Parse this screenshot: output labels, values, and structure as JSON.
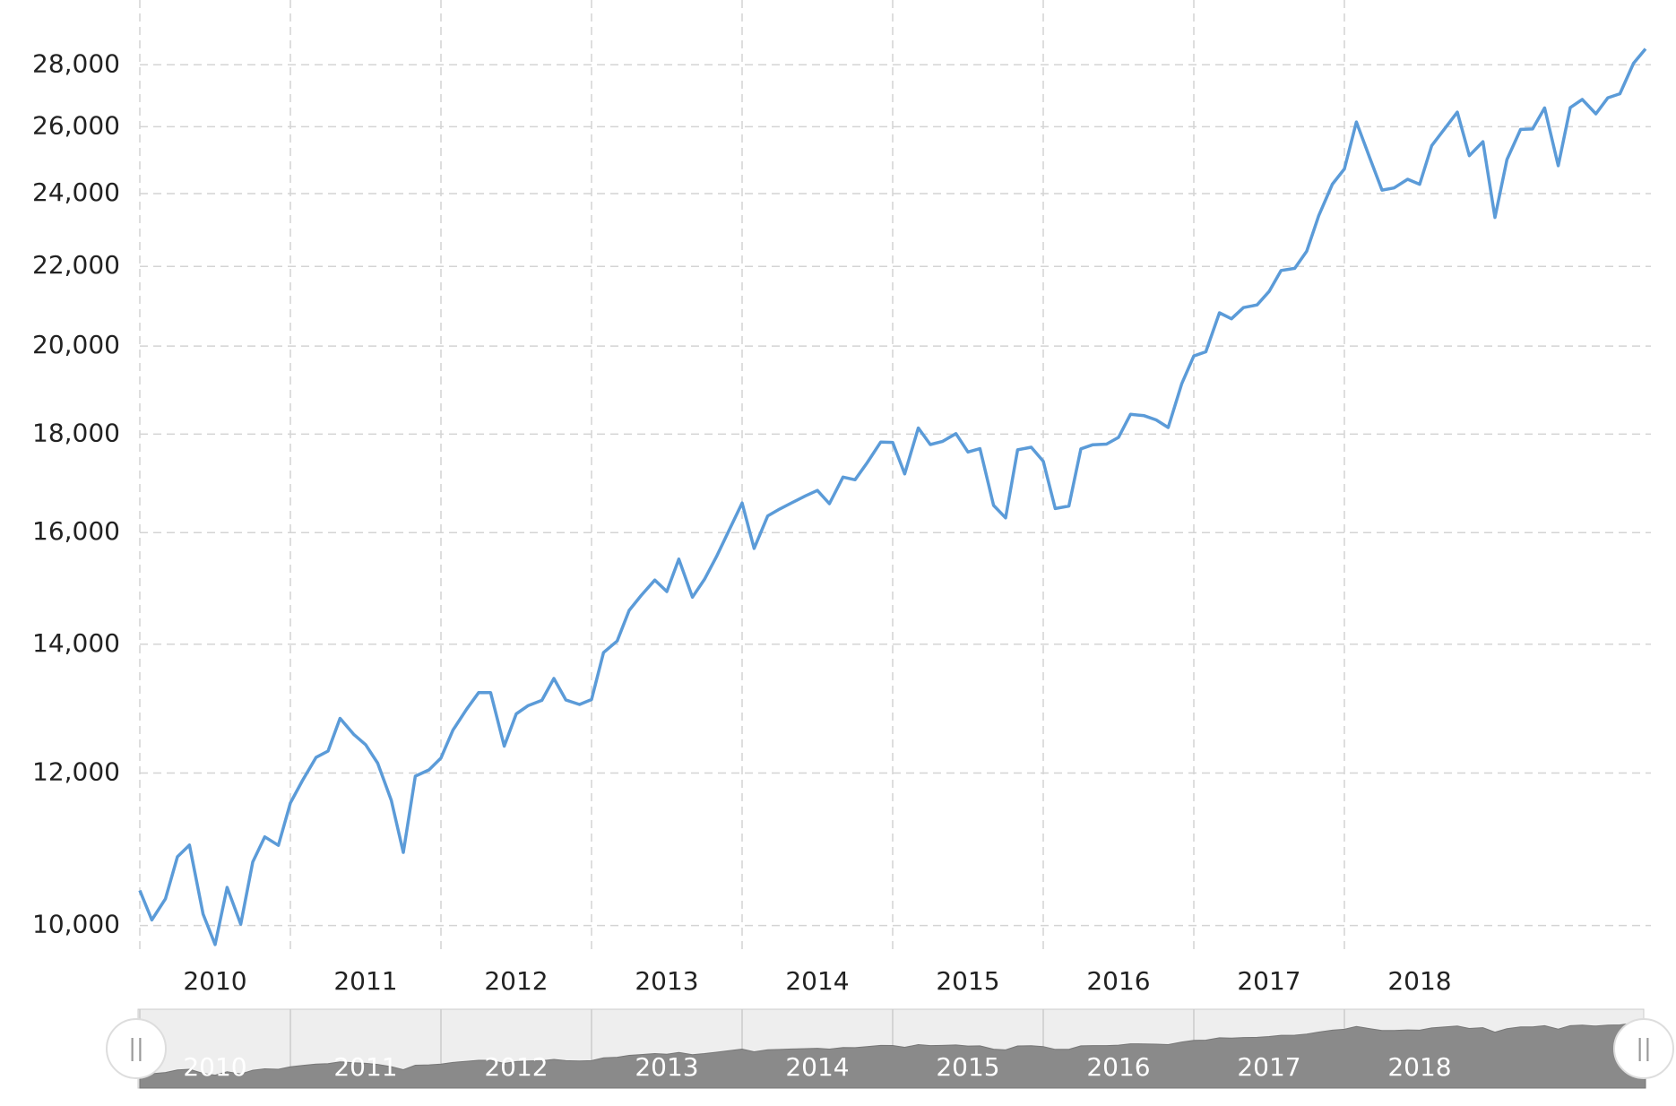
{
  "chart_data": {
    "type": "line",
    "log": true,
    "grid": true,
    "x": [
      2010,
      2010.08,
      2010.17,
      2010.25,
      2010.33,
      2010.42,
      2010.5,
      2010.58,
      2010.67,
      2010.75,
      2010.83,
      2010.92,
      2011,
      2011.08,
      2011.17,
      2011.25,
      2011.33,
      2011.42,
      2011.5,
      2011.58,
      2011.67,
      2011.75,
      2011.83,
      2011.92,
      2012,
      2012.08,
      2012.17,
      2012.25,
      2012.33,
      2012.42,
      2012.5,
      2012.58,
      2012.67,
      2012.75,
      2012.83,
      2012.92,
      2013,
      2013.08,
      2013.17,
      2013.25,
      2013.33,
      2013.42,
      2013.5,
      2013.58,
      2013.67,
      2013.75,
      2013.83,
      2013.92,
      2014,
      2014.08,
      2014.17,
      2014.25,
      2014.33,
      2014.42,
      2014.5,
      2014.58,
      2014.67,
      2014.75,
      2014.83,
      2014.92,
      2015,
      2015.08,
      2015.17,
      2015.25,
      2015.33,
      2015.42,
      2015.5,
      2015.58,
      2015.67,
      2015.75,
      2015.83,
      2015.92,
      2016,
      2016.08,
      2016.17,
      2016.25,
      2016.33,
      2016.42,
      2016.5,
      2016.58,
      2016.67,
      2016.75,
      2016.83,
      2016.92,
      2017,
      2017.08,
      2017.17,
      2017.25,
      2017.33,
      2017.42,
      2017.5,
      2017.58,
      2017.67,
      2017.75,
      2017.83,
      2017.92,
      2018,
      2018.08,
      2018.17,
      2018.25,
      2018.33,
      2018.42,
      2018.5,
      2018.58,
      2018.67,
      2018.75,
      2018.83,
      2018.92,
      2019,
      2019.08,
      2019.17,
      2019.25,
      2019.33,
      2019.42,
      2019.5,
      2019.58,
      2019.67,
      2019.75,
      2019.83,
      2019.92,
      2020
    ],
    "series": [
      {
        "color": "#5b9bd8",
        "values": [
          10428,
          10067,
          10325,
          10857,
          11009,
          10137,
          9774,
          10466,
          10015,
          10788,
          11118,
          11006,
          11578,
          11892,
          12226,
          12320,
          12811,
          12570,
          12414,
          12143,
          11614,
          10913,
          11955,
          12046,
          12218,
          12633,
          12952,
          13212,
          13214,
          12393,
          12880,
          13009,
          13091,
          13437,
          13096,
          13026,
          13104,
          13861,
          14054,
          14579,
          14840,
          15116,
          14910,
          15500,
          14810,
          15130,
          15546,
          16086,
          16577,
          15699,
          16322,
          16458,
          16581,
          16717,
          16827,
          16563,
          17098,
          17043,
          17391,
          17828,
          17823,
          17165,
          18133,
          17776,
          17841,
          18011,
          17620,
          17690,
          16528,
          16285,
          17664,
          17720,
          17425,
          16466,
          16517,
          17685,
          17774,
          17787,
          17930,
          18432,
          18401,
          18308,
          18142,
          19124,
          19763,
          19864,
          20812,
          20663,
          20941,
          21009,
          21350,
          21891,
          21948,
          22405,
          23377,
          24272,
          24719,
          26149,
          25029,
          24103,
          24163,
          24416,
          24271,
          25415,
          25965,
          26458,
          25116,
          25538,
          23327,
          24999,
          25916,
          25929,
          26593,
          24815,
          26600,
          26864,
          26403,
          26917,
          27046,
          28051,
          28538
        ]
      }
    ],
    "xlim": [
      2010,
      2020
    ],
    "xticks": [
      2010,
      2011,
      2012,
      2013,
      2014,
      2015,
      2016,
      2017,
      2018
    ],
    "ylim": [
      9700,
      28800
    ],
    "yticks": [
      {
        "value": 10000,
        "label": "10,000"
      },
      {
        "value": 12000,
        "label": "12,000"
      },
      {
        "value": 14000,
        "label": "14,000"
      },
      {
        "value": 16000,
        "label": "16,000"
      },
      {
        "value": 18000,
        "label": "18,000"
      },
      {
        "value": 20000,
        "label": "20,000"
      },
      {
        "value": 22000,
        "label": "22,000"
      },
      {
        "value": 24000,
        "label": "24,000"
      },
      {
        "value": 26000,
        "label": "26,000"
      },
      {
        "value": 28000,
        "label": "28,000"
      }
    ]
  }
}
